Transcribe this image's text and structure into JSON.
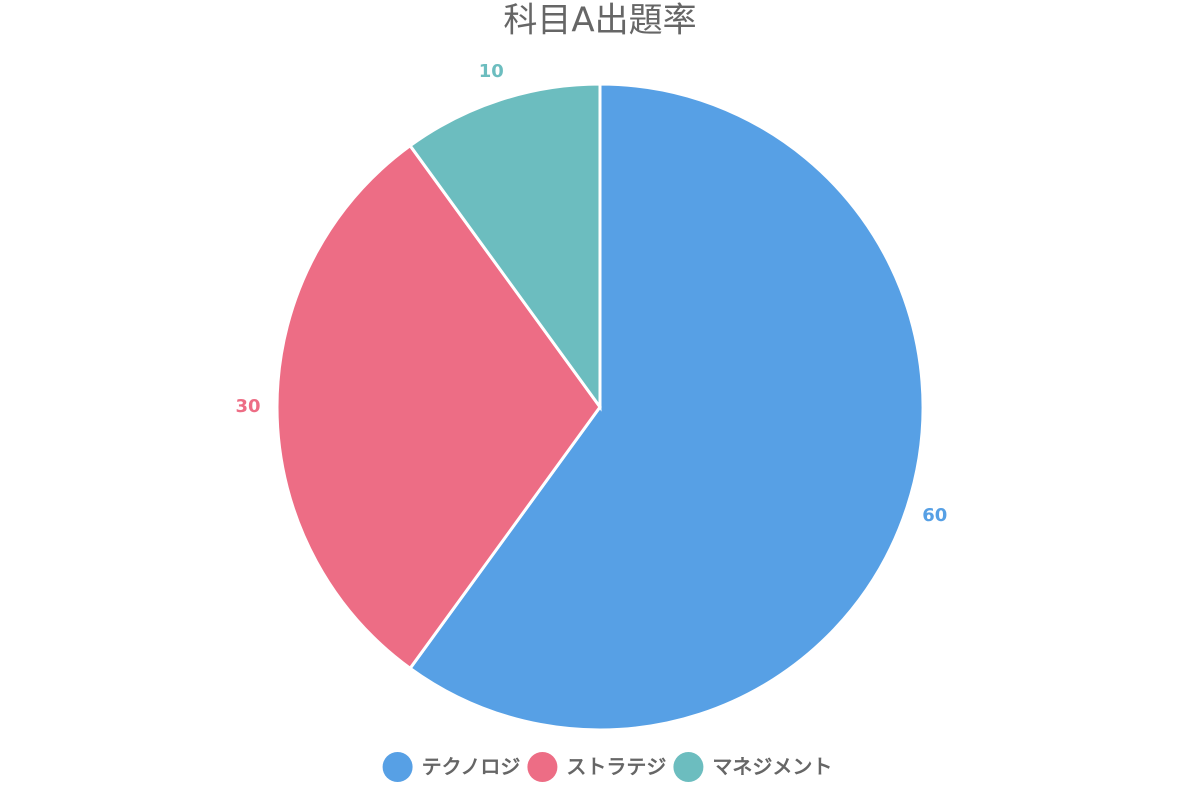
{
  "chart_data": {
    "type": "pie",
    "title": "科目A出題率",
    "categories": [
      "テクノロジ",
      "ストラテジ",
      "マネジメント"
    ],
    "values": [
      60,
      30,
      10
    ],
    "colors": [
      "#57a0e5",
      "#ed6d85",
      "#6cbdbf"
    ],
    "legend": "bottom"
  }
}
